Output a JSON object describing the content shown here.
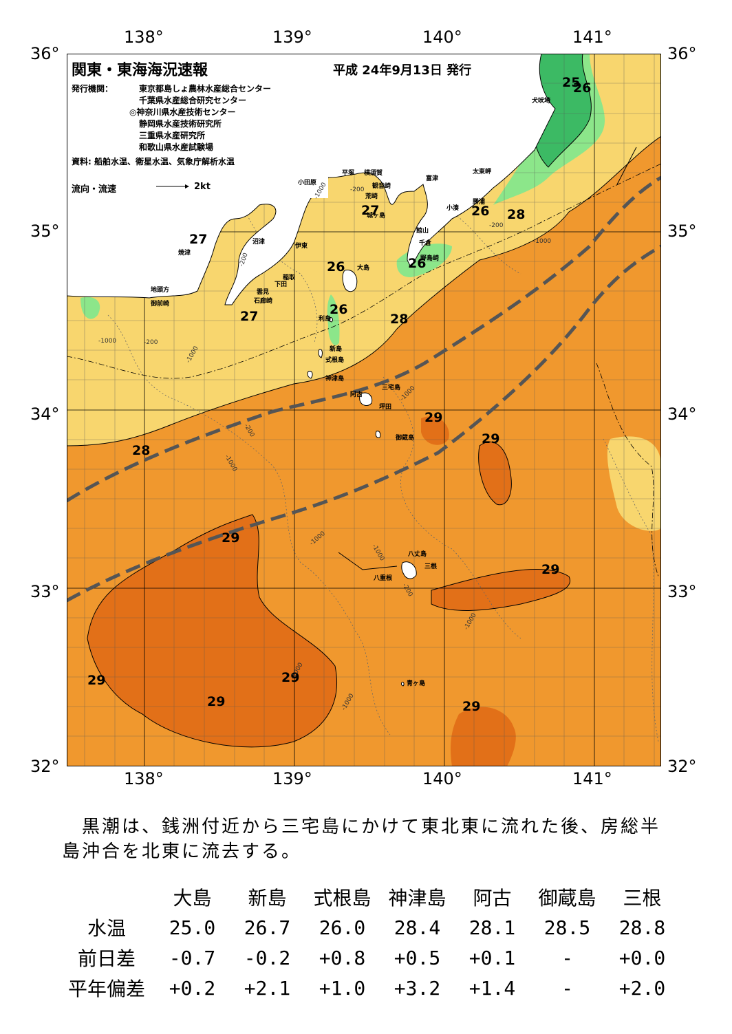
{
  "title": "関東・東海海況速報",
  "issue_date": "平成 24年9月13日 発行",
  "publishers_label": "発行機関：",
  "publishers": [
    "東京都島しょ農林水産総合センター",
    "千葉県水産総合研究センター",
    "◎神奈川県水産技術センター",
    "静岡県水産技術研究所",
    "三重県水産研究所",
    "和歌山県水産試験場"
  ],
  "source": "資料: 船舶水温、衛星水温、気象庁解析水温",
  "legend": {
    "label": "流向・流速",
    "speed": "2kt"
  },
  "axes": {
    "lon_ticks": [
      "138°",
      "139°",
      "140°",
      "141°"
    ],
    "lat_ticks": [
      "36°",
      "35°",
      "34°",
      "33°",
      "32°"
    ]
  },
  "colors": {
    "land": "#ffffff",
    "t25": "#3cba64",
    "t26": "#8ce68a",
    "t27": "#f8d66e",
    "t28": "#f0982e",
    "t29": "#e27018",
    "kuroshio": "#555555"
  },
  "place_names": [
    "小田原",
    "平塚",
    "横須賀",
    "観音崎",
    "荒崎",
    "城ヶ島",
    "富津",
    "太東岬",
    "犬吠埼",
    "勝浦",
    "小湊",
    "館山",
    "千倉",
    "野島崎",
    "沼津",
    "焼津",
    "伊東",
    "稲取",
    "下田",
    "石廊崎",
    "雲見",
    "地頭方",
    "御前崎",
    "大島",
    "利島",
    "新島",
    "式根島",
    "神津島",
    "三宅島",
    "阿古",
    "坪田",
    "御蔵島",
    "八丈島",
    "三根",
    "八重根",
    "青ヶ島"
  ],
  "isotherm_labels": [
    "25",
    "26",
    "27",
    "28",
    "29"
  ],
  "depth_labels": [
    "-200",
    "-1000"
  ],
  "description": "　黒潮は、銭洲付近から三宅島にかけて東北東に流れた後、房総半島沖合を北東に流去する。",
  "observations": {
    "stations": [
      "大島",
      "新島",
      "式根島",
      "神津島",
      "阿古",
      "御蔵島",
      "三根"
    ],
    "rows": [
      {
        "label": "水温",
        "values": [
          "25.0",
          "26.7",
          "26.0",
          "28.4",
          "28.1",
          "28.5",
          "28.8"
        ]
      },
      {
        "label": "前日差",
        "values": [
          "-0.7",
          "-0.2",
          "+0.8",
          "+0.5",
          "+0.1",
          "-",
          "+0.0"
        ]
      },
      {
        "label": "平年偏差",
        "values": [
          "+0.2",
          "+2.1",
          "+1.0",
          "+3.2",
          "+1.4",
          "-",
          "+2.0"
        ]
      }
    ]
  }
}
